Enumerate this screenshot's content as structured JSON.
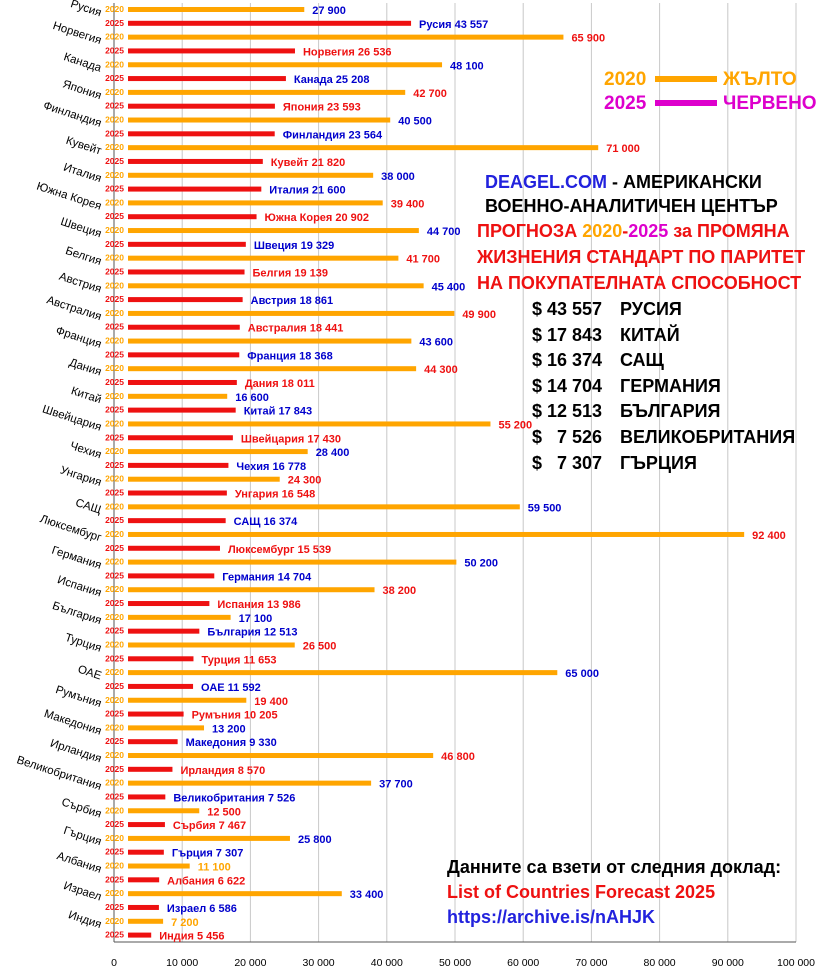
{
  "chart_data": {
    "type": "bar",
    "orientation": "horizontal",
    "series_names": [
      "2020",
      "2025"
    ],
    "x_ticks": [
      "0",
      "10 000",
      "20 000",
      "30 000",
      "40 000",
      "50 000",
      "60 000",
      "70 000",
      "80 000",
      "90 000",
      "100 000"
    ],
    "xlim": [
      0,
      100000
    ],
    "grid": true,
    "colors": {
      "s2020": "#FFA500",
      "s2025": "#EE1111",
      "label_blue": "#0000CC",
      "label_red": "#EE1111",
      "label_orange": "#FFA500"
    },
    "countries": [
      {
        "name": "Русия",
        "v2020": 27900,
        "l2020": "27 900",
        "c2020": "blue",
        "v2025": 43557,
        "l2025": "Русия  43 557",
        "c2025": "blue"
      },
      {
        "name": "Норвегия",
        "v2020": 65900,
        "l2020": "65 900",
        "c2020": "red",
        "v2025": 26536,
        "l2025": "Норвегия  26 536",
        "c2025": "red"
      },
      {
        "name": "Канада",
        "v2020": 48100,
        "l2020": "48 100",
        "c2020": "blue",
        "v2025": 25208,
        "l2025": "Канада  25 208",
        "c2025": "blue"
      },
      {
        "name": "Япония",
        "v2020": 42700,
        "l2020": "42 700",
        "c2020": "red",
        "v2025": 23593,
        "l2025": "Япония  23 593",
        "c2025": "red"
      },
      {
        "name": "Финландия",
        "v2020": 40500,
        "l2020": "40 500",
        "c2020": "blue",
        "v2025": 23564,
        "l2025": "Финландия  23 564",
        "c2025": "blue"
      },
      {
        "name": "Кувейт",
        "v2020": 71000,
        "l2020": "71 000",
        "c2020": "red",
        "v2025": 21820,
        "l2025": "Кувейт  21 820",
        "c2025": "red"
      },
      {
        "name": "Италия",
        "v2020": 38000,
        "l2020": "38 000",
        "c2020": "blue",
        "v2025": 21600,
        "l2025": "Италия  21 600",
        "c2025": "blue"
      },
      {
        "name": "Южна Корея",
        "v2020": 39400,
        "l2020": "39 400",
        "c2020": "red",
        "v2025": 20902,
        "l2025": "Южна Корея  20 902",
        "c2025": "red"
      },
      {
        "name": "Швеция",
        "v2020": 44700,
        "l2020": "44 700",
        "c2020": "blue",
        "v2025": 19329,
        "l2025": "Швеция  19 329",
        "c2025": "blue"
      },
      {
        "name": "Белгия",
        "v2020": 41700,
        "l2020": "41 700",
        "c2020": "red",
        "v2025": 19139,
        "l2025": "Белгия  19 139",
        "c2025": "red"
      },
      {
        "name": "Австрия",
        "v2020": 45400,
        "l2020": "45 400",
        "c2020": "blue",
        "v2025": 18861,
        "l2025": "Австрия  18 861",
        "c2025": "blue"
      },
      {
        "name": "Австралия",
        "v2020": 49900,
        "l2020": "49 900",
        "c2020": "red",
        "v2025": 18441,
        "l2025": "Австралия  18 441",
        "c2025": "red"
      },
      {
        "name": "Франция",
        "v2020": 43600,
        "l2020": "43 600",
        "c2020": "blue",
        "v2025": 18368,
        "l2025": "Франция  18 368",
        "c2025": "blue"
      },
      {
        "name": "Дания",
        "v2020": 44300,
        "l2020": "44 300",
        "c2020": "red",
        "v2025": 18011,
        "l2025": "Дания  18 011",
        "c2025": "red"
      },
      {
        "name": "Китай",
        "v2020": 16600,
        "l2020": "16 600",
        "c2020": "blue",
        "v2025": 17843,
        "l2025": "Китай  17 843",
        "c2025": "blue"
      },
      {
        "name": "Швейцария",
        "v2020": 55200,
        "l2020": "55 200",
        "c2020": "red",
        "v2025": 17430,
        "l2025": "Швейцария  17 430",
        "c2025": "red"
      },
      {
        "name": "Чехия",
        "v2020": 28400,
        "l2020": "28 400",
        "c2020": "blue",
        "v2025": 16778,
        "l2025": "Чехия  16 778",
        "c2025": "blue"
      },
      {
        "name": "Унгария",
        "v2020": 24300,
        "l2020": "24 300",
        "c2020": "red",
        "v2025": 16548,
        "l2025": "Унгария  16 548",
        "c2025": "red"
      },
      {
        "name": "САЩ",
        "v2020": 59500,
        "l2020": "59 500",
        "c2020": "blue",
        "v2025": 16374,
        "l2025": "САЩ  16 374",
        "c2025": "blue"
      },
      {
        "name": "Люксембург",
        "v2020": 92400,
        "l2020": "92 400",
        "c2020": "red",
        "v2025": 15539,
        "l2025": "Люксембург  15 539",
        "c2025": "red"
      },
      {
        "name": "Германия",
        "v2020": 50200,
        "l2020": "50 200",
        "c2020": "blue",
        "v2025": 14704,
        "l2025": "Германия  14 704",
        "c2025": "blue"
      },
      {
        "name": "Испания",
        "v2020": 38200,
        "l2020": "38 200",
        "c2020": "red",
        "v2025": 13986,
        "l2025": "Испания  13 986",
        "c2025": "red"
      },
      {
        "name": "България",
        "v2020": 17100,
        "l2020": "17 100",
        "c2020": "blue",
        "v2025": 12513,
        "l2025": "България  12 513",
        "c2025": "blue"
      },
      {
        "name": "Турция",
        "v2020": 26500,
        "l2020": "26 500",
        "c2020": "red",
        "v2025": 11653,
        "l2025": "Турция  11 653",
        "c2025": "red"
      },
      {
        "name": "ОАЕ",
        "v2020": 65000,
        "l2020": "65 000",
        "c2020": "blue",
        "v2025": 11592,
        "l2025": "ОАЕ  11 592",
        "c2025": "blue"
      },
      {
        "name": "Румъния",
        "v2020": 19400,
        "l2020": "19 400",
        "c2020": "red",
        "v2025": 10205,
        "l2025": "Румъния  10 205",
        "c2025": "red"
      },
      {
        "name": "Македония",
        "v2020": 13200,
        "l2020": "13 200",
        "c2020": "blue",
        "v2025": 9330,
        "l2025": "Македония  9 330",
        "c2025": "blue"
      },
      {
        "name": "Ирландия",
        "v2020": 46800,
        "l2020": "46 800",
        "c2020": "red",
        "v2025": 8570,
        "l2025": "Ирландия  8 570",
        "c2025": "red"
      },
      {
        "name": "Великобритания",
        "v2020": 37700,
        "l2020": "37 700",
        "c2020": "blue",
        "v2025": 7526,
        "l2025": "Великобритания  7 526",
        "c2025": "blue"
      },
      {
        "name": "Сърбия",
        "v2020": 12500,
        "l2020": "12 500",
        "c2020": "red",
        "v2025": 7467,
        "l2025": "Сърбия  7 467",
        "c2025": "red"
      },
      {
        "name": "Гърция",
        "v2020": 25800,
        "l2020": "25 800",
        "c2020": "blue",
        "v2025": 7307,
        "l2025": "Гърция  7 307",
        "c2025": "blue"
      },
      {
        "name": "Албания",
        "v2020": 11100,
        "l2020": "11 100",
        "c2020": "orange",
        "v2025": 6622,
        "l2025": "Албания  6 622",
        "c2025": "red"
      },
      {
        "name": "Израел",
        "v2020": 33400,
        "l2020": "33 400",
        "c2020": "blue",
        "v2025": 6586,
        "l2025": "Израел  6 586",
        "c2025": "blue"
      },
      {
        "name": "Индия",
        "v2020": 7200,
        "l2020": "7 200",
        "c2020": "orange",
        "v2025": 5456,
        "l2025": "Индия  5 456",
        "c2025": "red"
      }
    ]
  },
  "legend": {
    "y2020": "2020",
    "w2020": "ЖЪЛТО",
    "c2020": "#FFA500",
    "y2025": "2025",
    "w2025": "ЧЕРВЕНО",
    "c2025": "#DD00CC"
  },
  "header": {
    "line1a": "DEAGEL.COM",
    "line1b": " -  АМЕРИКАНСКИ",
    "line2": "ВОЕННО-АНАЛИТИЧЕН ЦЕНТЪР",
    "line3a": "ПРОГНОЗА ",
    "line3b": "2020",
    "line3c": "-",
    "line3d": "2025",
    "line3e": " за ПРОМЯНА",
    "line4": "ЖИЗНЕНИЯ СТАНДАРТ ПО ПАРИТЕТ",
    "line5": "НА ПОКУПАТЕЛНАТА СПОСОБНОСТ"
  },
  "top_list": [
    {
      "value": "$ 43 557",
      "country": "РУСИЯ"
    },
    {
      "value": "$ 17 843",
      "country": "КИТАЙ"
    },
    {
      "value": "$ 16 374",
      "country": "САЩ"
    },
    {
      "value": "$ 14 704",
      "country": "ГЕРМАНИЯ"
    },
    {
      "value": "$ 12 513",
      "country": "БЪЛГАРИЯ"
    },
    {
      "value": "$   7 526",
      "country": "ВЕЛИКОБРИТАНИЯ"
    },
    {
      "value": "$   7 307",
      "country": "ГЪРЦИЯ"
    }
  ],
  "source": {
    "line1": "Данните са взети от следния доклад:",
    "line2": "List of Countries Forecast 2025",
    "line3": "https://archive.is/nAHJK"
  }
}
